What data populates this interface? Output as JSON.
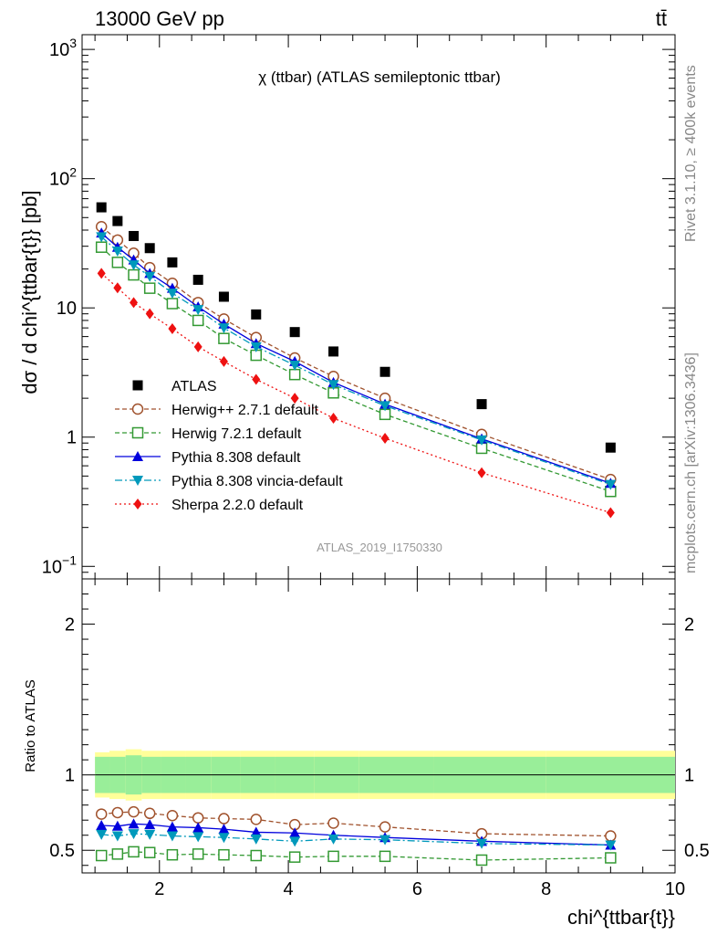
{
  "header": {
    "left": "13000 GeV pp",
    "right": "tt̄"
  },
  "side": {
    "rivet": "Rivet 3.1.10, ≥ 400k events",
    "mcplots": "mcplots.cern.ch [arXiv:1306.3436]"
  },
  "colors": {
    "atlas": "#000000",
    "herwigpp": "#a0522d",
    "herwig7": "#339933",
    "pythia": "#0000dd",
    "vincia": "#0099bb",
    "sherpa": "#ee1111",
    "band_inner": "#99ee99",
    "band_outer": "#ffff99"
  },
  "chart_data": [
    {
      "type": "scatter",
      "title": "χ (ttbar) (ATLAS semileptonic ttbar)",
      "ylabel": "dσ / d chi^{ttbar{t}} [pb]",
      "xlabel": "chi^{ttbar{t}}",
      "yscale": "log",
      "xlim": [
        0.8,
        10
      ],
      "ylim": [
        0.08,
        1300
      ],
      "y_tick_labels": [
        "10^{-1}",
        "1",
        "10",
        "10^2",
        "10^3"
      ],
      "watermark": "ATLAS_2019_I1750330",
      "legend_position": "lower-left",
      "x": [
        1.1,
        1.35,
        1.6,
        1.85,
        2.2,
        2.6,
        3.0,
        3.5,
        4.1,
        4.7,
        5.5,
        7.0,
        9.0
      ],
      "series": [
        {
          "name": "ATLAS",
          "marker": "square",
          "values": [
            60,
            47,
            36,
            29,
            22.5,
            16.5,
            12.2,
            8.9,
            6.5,
            4.6,
            3.2,
            1.8,
            0.83
          ]
        },
        {
          "name": "Herwig++ 2.7.1 default",
          "marker": "open-circle",
          "line": "dashed",
          "values": [
            42.5,
            33.5,
            26.5,
            20.5,
            15.5,
            11,
            8.2,
            5.9,
            4.1,
            2.95,
            2.0,
            1.05,
            0.47
          ]
        },
        {
          "name": "Herwig 7.2.1 default",
          "marker": "open-square",
          "line": "dashed",
          "values": [
            29.5,
            22.5,
            18,
            14.2,
            10.8,
            8.0,
            5.8,
            4.3,
            3.05,
            2.2,
            1.5,
            0.82,
            0.38
          ]
        },
        {
          "name": "Pythia 8.308 default",
          "marker": "triangle-up",
          "line": "solid",
          "values": [
            38,
            29.5,
            23.5,
            18.5,
            14.2,
            10.2,
            7.5,
            5.3,
            3.85,
            2.65,
            1.8,
            0.97,
            0.44
          ]
        },
        {
          "name": "Pythia 8.308 vincia-default",
          "marker": "triangle-down",
          "line": "dashdot",
          "values": [
            35.5,
            27.5,
            21.5,
            17.5,
            13.0,
            9.7,
            7.0,
            5.0,
            3.6,
            2.55,
            1.75,
            0.95,
            0.43
          ]
        },
        {
          "name": "Sherpa 2.2.0 default",
          "marker": "diamond",
          "line": "dotted",
          "values": [
            18.5,
            14.3,
            11.0,
            9.0,
            6.9,
            5.0,
            3.85,
            2.8,
            2.0,
            1.4,
            0.98,
            0.53,
            0.26
          ]
        }
      ]
    },
    {
      "type": "scatter",
      "ylabel": "Ratio to ATLAS",
      "xlabel": "chi^{ttbar{t}}",
      "xlim": [
        0.8,
        10
      ],
      "ylim": [
        0.35,
        2.3
      ],
      "x_ticks": [
        2,
        4,
        6,
        8,
        10
      ],
      "y_ticks": [
        0.5,
        1,
        2
      ],
      "x": [
        1.1,
        1.35,
        1.6,
        1.85,
        2.2,
        2.6,
        3.0,
        3.5,
        4.1,
        4.7,
        5.5,
        7.0,
        9.0
      ],
      "band_inner": [
        0.12,
        0.12,
        0.13,
        0.12,
        0.12,
        0.12,
        0.12,
        0.12,
        0.12,
        0.12,
        0.12,
        0.12,
        0.12
      ],
      "band_outer": [
        0.15,
        0.16,
        0.17,
        0.16,
        0.16,
        0.16,
        0.16,
        0.16,
        0.16,
        0.16,
        0.16,
        0.16,
        0.16
      ],
      "series": [
        {
          "name": "Herwig++ 2.7.1 default",
          "values": [
            0.74,
            0.75,
            0.755,
            0.745,
            0.73,
            0.715,
            0.71,
            0.705,
            0.67,
            0.68,
            0.655,
            0.61,
            0.595
          ]
        },
        {
          "name": "Herwig 7.2.1 default",
          "values": [
            0.465,
            0.475,
            0.49,
            0.485,
            0.47,
            0.475,
            0.47,
            0.465,
            0.455,
            0.46,
            0.46,
            0.435,
            0.45
          ]
        },
        {
          "name": "Pythia 8.308 default",
          "values": [
            0.665,
            0.66,
            0.675,
            0.67,
            0.655,
            0.65,
            0.64,
            0.62,
            0.615,
            0.6,
            0.585,
            0.56,
            0.535
          ]
        },
        {
          "name": "Pythia 8.308 vincia-default",
          "values": [
            0.605,
            0.595,
            0.61,
            0.605,
            0.595,
            0.59,
            0.585,
            0.575,
            0.56,
            0.575,
            0.57,
            0.545,
            0.535
          ]
        }
      ]
    }
  ]
}
